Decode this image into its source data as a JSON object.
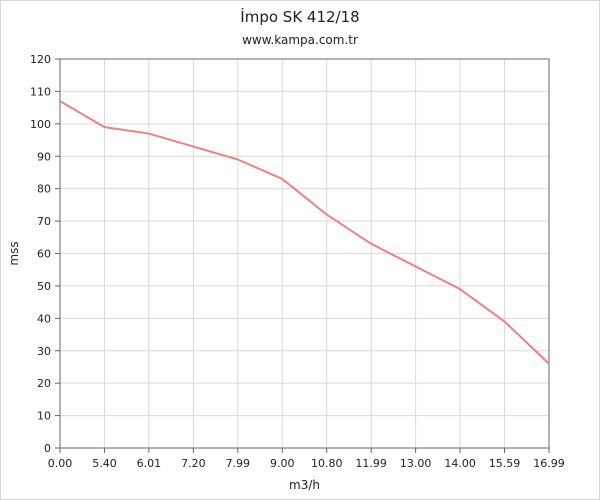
{
  "chart_data": {
    "type": "line",
    "title": "İmpo SK 412/18",
    "subtitle": "www.kampa.com.tr",
    "xlabel": "m3/h",
    "ylabel": "mss",
    "categories": [
      "0.00",
      "5.40",
      "6.01",
      "7.20",
      "7.99",
      "9.00",
      "10.80",
      "11.99",
      "13.00",
      "14.00",
      "15.59",
      "16.99"
    ],
    "ylim": [
      0,
      120
    ],
    "yticks": [
      0,
      10,
      20,
      30,
      40,
      50,
      60,
      70,
      80,
      90,
      100,
      110,
      120
    ],
    "grid": true,
    "series": [
      {
        "values": [
          107,
          99,
          97,
          93,
          89,
          83,
          72,
          63,
          56,
          49,
          39,
          26
        ],
        "color": "#f08080"
      }
    ]
  }
}
